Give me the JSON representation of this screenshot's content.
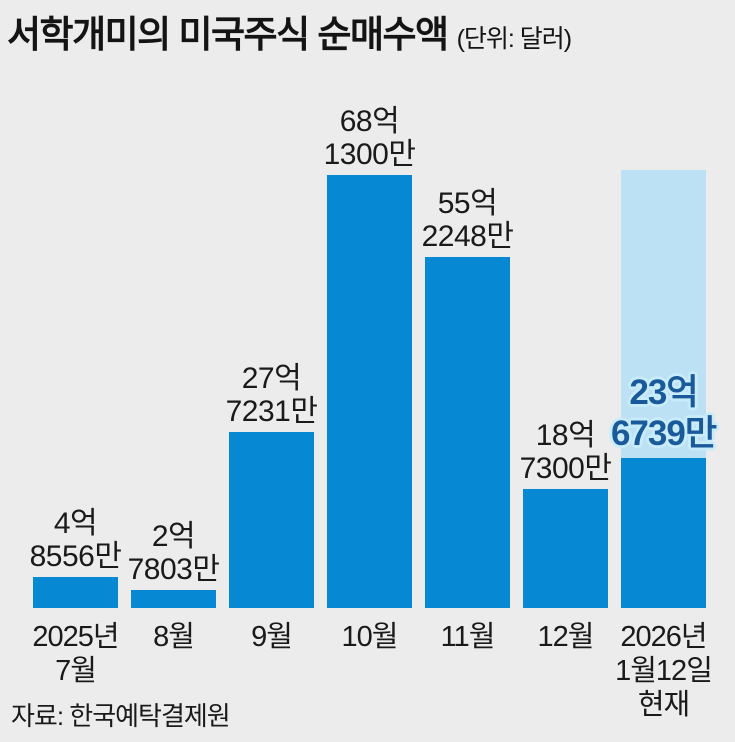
{
  "page": {
    "title": "서학개미의 미국주식 순매수액",
    "unit_label": "(단위: 달러)",
    "source": "자료: 한국예탁결제원"
  },
  "colors": {
    "background": "#ececec",
    "bar": "#0788d2",
    "highlight_column": "#bce1f4",
    "highlight_value_text": "#1a5a9a",
    "text": "#1a1a1a"
  },
  "chart_data": {
    "type": "bar",
    "title": "서학개미의 미국주식 순매수액",
    "unit": "달러",
    "xlabel": "",
    "ylabel": "",
    "grid": false,
    "legend": false,
    "ylim_eok_usd": [
      0,
      68.9
    ],
    "categories": [
      "2025년 7월",
      "8월",
      "9월",
      "10월",
      "11월",
      "12월",
      "2026년 1월12일 현재"
    ],
    "values_eok_usd": [
      4.8556,
      2.7803,
      27.7231,
      68.13,
      55.2248,
      18.73,
      23.6739
    ],
    "bars": [
      {
        "category_lines": [
          "2025년",
          "7월"
        ],
        "value_eok": 4.8556,
        "value_lines": [
          "4억",
          "8556만"
        ],
        "highlighted": false
      },
      {
        "category_lines": [
          "8월"
        ],
        "value_eok": 2.7803,
        "value_lines": [
          "2억",
          "7803만"
        ],
        "highlighted": false
      },
      {
        "category_lines": [
          "9월"
        ],
        "value_eok": 27.7231,
        "value_lines": [
          "27억",
          "7231만"
        ],
        "highlighted": false
      },
      {
        "category_lines": [
          "10월"
        ],
        "value_eok": 68.13,
        "value_lines": [
          "68억",
          "1300만"
        ],
        "highlighted": false
      },
      {
        "category_lines": [
          "11월"
        ],
        "value_eok": 55.2248,
        "value_lines": [
          "55억",
          "2248만"
        ],
        "highlighted": false
      },
      {
        "category_lines": [
          "12월"
        ],
        "value_eok": 18.73,
        "value_lines": [
          "18억",
          "7300만"
        ],
        "highlighted": false
      },
      {
        "category_lines": [
          "2026년",
          "1월12일",
          "현재"
        ],
        "value_eok": 23.6739,
        "value_lines": [
          "23억",
          "6739만"
        ],
        "highlighted": true
      }
    ]
  }
}
